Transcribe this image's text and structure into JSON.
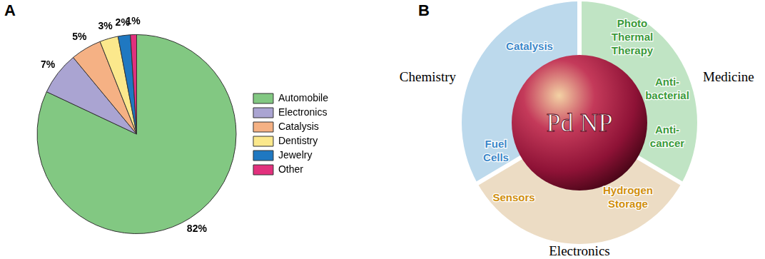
{
  "chart_data": {
    "type": "pie",
    "panel": "A",
    "categories": [
      "Automobile",
      "Electronics",
      "Catalysis",
      "Dentistry",
      "Jewelry",
      "Other"
    ],
    "values": [
      82,
      7,
      5,
      3,
      2,
      1
    ],
    "value_labels": [
      "82%",
      "7%",
      "5%",
      "3%",
      "2%",
      "1%"
    ],
    "colors": [
      "#82c882",
      "#aaa4d2",
      "#f5b184",
      "#fbe88c",
      "#1f78c1",
      "#e2307d"
    ],
    "data_labels": true,
    "legend": "right"
  },
  "diagram": {
    "panel": "B",
    "center": "Pd NP",
    "groups": [
      {
        "label": "Chemistry",
        "color": "#bcd9ec",
        "text_color": "#3b87c9",
        "items": [
          [
            "Catalysis"
          ],
          [
            "Fuel",
            "Cells"
          ]
        ]
      },
      {
        "label": "Medicine",
        "color": "#c0e4c4",
        "text_color": "#3a9a3a",
        "items": [
          [
            "Photo",
            "Thermal",
            "Therapy"
          ],
          [
            "Anti-",
            "bacterial"
          ],
          [
            "Anti-",
            "cancer"
          ]
        ]
      },
      {
        "label": "Electronics",
        "color": "#ecdcc4",
        "text_color": "#d08e0c",
        "items": [
          [
            "Sensors"
          ],
          [
            "Hydrogen",
            "Storage"
          ]
        ]
      }
    ]
  }
}
